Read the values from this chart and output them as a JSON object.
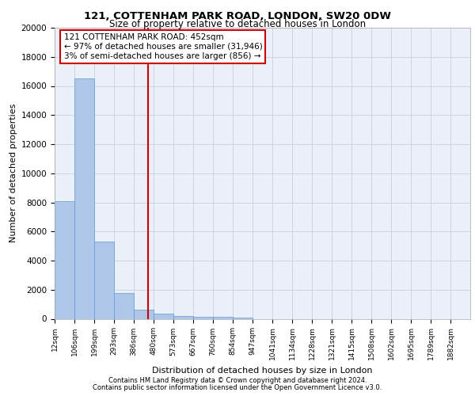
{
  "title_line1": "121, COTTENHAM PARK ROAD, LONDON, SW20 0DW",
  "title_line2": "Size of property relative to detached houses in London",
  "xlabel": "Distribution of detached houses by size in London",
  "ylabel": "Number of detached properties",
  "annotation_line1": "121 COTTENHAM PARK ROAD: 452sqm",
  "annotation_line2": "← 97% of detached houses are smaller (31,946)",
  "annotation_line3": "3% of semi-detached houses are larger (856) →",
  "property_size_sqm": 452,
  "footer_line1": "Contains HM Land Registry data © Crown copyright and database right 2024.",
  "footer_line2": "Contains public sector information licensed under the Open Government Licence v3.0.",
  "bar_left_edges": [
    12,
    106,
    199,
    293,
    386,
    480,
    573,
    667,
    760,
    854,
    947,
    1041,
    1134,
    1228,
    1321,
    1415,
    1508,
    1602,
    1695,
    1789
  ],
  "bar_widths": [
    94,
    93,
    94,
    93,
    94,
    93,
    94,
    93,
    94,
    93,
    94,
    93,
    94,
    93,
    94,
    93,
    94,
    93,
    94,
    93
  ],
  "bar_heights": [
    8100,
    16500,
    5300,
    1750,
    620,
    350,
    190,
    150,
    120,
    100,
    0,
    0,
    0,
    0,
    0,
    0,
    0,
    0,
    0,
    0
  ],
  "tick_labels": [
    "12sqm",
    "106sqm",
    "199sqm",
    "293sqm",
    "386sqm",
    "480sqm",
    "573sqm",
    "667sqm",
    "760sqm",
    "854sqm",
    "947sqm",
    "1041sqm",
    "1134sqm",
    "1228sqm",
    "1321sqm",
    "1415sqm",
    "1508sqm",
    "1602sqm",
    "1695sqm",
    "1789sqm",
    "1882sqm"
  ],
  "bar_color": "#aec6e8",
  "bar_edge_color": "#5b9bd5",
  "vline_x": 452,
  "vline_color": "#cc0000",
  "annotation_box_color": "#cc0000",
  "ylim": [
    0,
    20000
  ],
  "yticks": [
    0,
    2000,
    4000,
    6000,
    8000,
    10000,
    12000,
    14000,
    16000,
    18000,
    20000
  ],
  "grid_color": "#c8d0e0",
  "plot_bg_color": "#eaeff8",
  "xlim_min": 12,
  "xlim_max": 1975
}
